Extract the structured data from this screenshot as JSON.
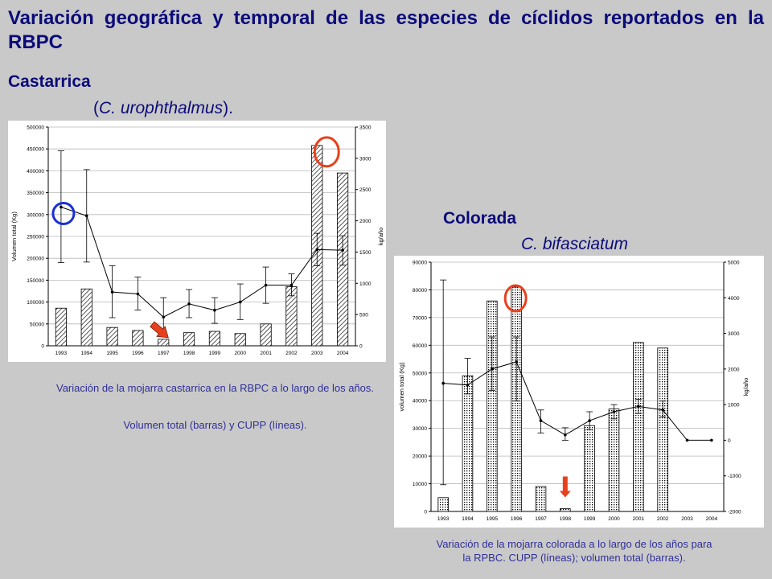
{
  "page": {
    "title": "Variación geográfica y temporal de las especies de cíclidos reportados en la RBPC"
  },
  "castarrica": {
    "name": "Castarrica",
    "scientific_prefix": "(",
    "scientific_name": "C. urophthalmus",
    "scientific_suffix": ").",
    "caption_1": "Variación de la mojarra castarrica en la RBPC a lo largo de los años.",
    "caption_2": "Volumen total (barras) y CUPP (líneas)."
  },
  "colorada": {
    "name": "Colorada",
    "scientific_name": "C. bifasciatum",
    "caption": "Variación de la mojarra colorada a lo largo de los años para la RPBC. CUPP (líneas); volumen total (barras)."
  },
  "colors": {
    "title": "#0b0b7a",
    "caption": "#2f2f9a",
    "blue_circle": "#1a2fd6",
    "red_mark": "#e8401c"
  },
  "chart_data": [
    {
      "type": "bar",
      "combo": "bar+line",
      "categories": [
        "1993",
        "1994",
        "1995",
        "1996",
        "1997",
        "1998",
        "1999",
        "2000",
        "2001",
        "2002",
        "2003",
        "2004"
      ],
      "series": [
        {
          "axis": "left",
          "type": "bar",
          "pattern": "hatch",
          "values": [
            86000,
            130000,
            42000,
            35000,
            15000,
            30000,
            33000,
            28000,
            50000,
            135000,
            458000,
            395000
          ]
        },
        {
          "axis": "right",
          "type": "line",
          "values": [
            2220,
            2080,
            860,
            830,
            460,
            670,
            570,
            700,
            970,
            970,
            1540,
            1530
          ],
          "error_upper": [
            3120,
            2820,
            1280,
            1100,
            770,
            900,
            770,
            990,
            1260,
            1150,
            1800,
            1760
          ],
          "error_lower": [
            1330,
            1340,
            450,
            570,
            160,
            450,
            360,
            420,
            680,
            800,
            1280,
            1290
          ]
        }
      ],
      "ylabel": "Volumen total (Kg)",
      "ylabel_right": "kg/año",
      "ylim": [
        0,
        500000
      ],
      "ylim_right": [
        0,
        3500
      ],
      "yticks": [
        "0",
        "50000",
        "100000",
        "150000",
        "200000",
        "250000",
        "300000",
        "350000",
        "400000",
        "450000",
        "500000"
      ],
      "yticks_right": [
        "0",
        "500",
        "1000",
        "1500",
        "2000",
        "2500",
        "3000",
        "3500"
      ],
      "grid": true,
      "annotations": [
        "blue circle on 1993 line point",
        "red arrow on 1997 bar",
        "red circle on 2003 bar"
      ]
    },
    {
      "type": "bar",
      "combo": "bar+line",
      "categories": [
        "1993",
        "1994",
        "1995",
        "1996",
        "1997",
        "1998",
        "1999",
        "2000",
        "2001",
        "2002",
        "2003",
        "2004"
      ],
      "series": [
        {
          "axis": "left",
          "type": "bar",
          "pattern": "dots",
          "values": [
            5000,
            49000,
            76000,
            81000,
            9000,
            1000,
            31000,
            37000,
            61000,
            59000,
            0,
            0
          ]
        },
        {
          "axis": "right",
          "type": "line",
          "values": [
            1600,
            1550,
            2000,
            2200,
            550,
            150,
            550,
            800,
            950,
            850,
            0,
            0
          ],
          "error_upper": [
            4500,
            2300,
            2900,
            2900,
            850,
            350,
            800,
            1000,
            1150,
            1100,
            null,
            null
          ],
          "error_lower": [
            -1250,
            1300,
            1400,
            1100,
            200,
            0,
            300,
            600,
            750,
            650,
            null,
            null
          ]
        }
      ],
      "ylabel": "volumen total (Kg)",
      "ylabel_right": "kg/año",
      "ylim": [
        0,
        90000
      ],
      "ylim_right": [
        -2000,
        5000
      ],
      "yticks": [
        "0",
        "10000",
        "20000",
        "30000",
        "40000",
        "50000",
        "60000",
        "70000",
        "80000",
        "90000"
      ],
      "yticks_right": [
        "-2000",
        "-1000",
        "0",
        "1000",
        "2000",
        "3000",
        "4000",
        "5000"
      ],
      "grid": true,
      "annotations": [
        "red circle on 1996 bar",
        "red arrow on 1998 bar"
      ]
    }
  ]
}
